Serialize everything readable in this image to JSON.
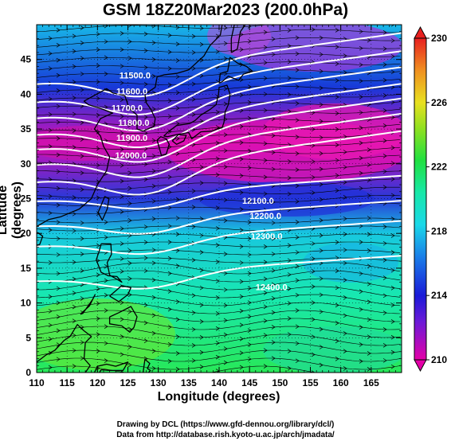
{
  "title": "GSM 18Z20Mar2023 (200.0hPa)",
  "xlabel": "Longitude (degrees)",
  "ylabel": "Latitude  (degrees)",
  "credit_line1": "Drawing by DCL (https://www.gfd-dennou.org/library/dcl/)",
  "credit_line2": "Data from http://database.rish.kyoto-u.ac.jp/arch/jmadata/",
  "colors": {
    "frame": "#000000",
    "contour": "#ffffff",
    "coast": "#000000",
    "streamline": "#000000"
  },
  "map": {
    "projection": "equirectangular",
    "lon_range": [
      110,
      170
    ],
    "lat_range": [
      0,
      50
    ],
    "x_ticks": [
      110,
      115,
      120,
      125,
      130,
      135,
      140,
      145,
      150,
      155,
      160,
      165
    ],
    "y_ticks": [
      0,
      5,
      10,
      15,
      20,
      25,
      30,
      35,
      40,
      45
    ],
    "x_tick_labels": [
      "110",
      "115",
      "120",
      "125",
      "130",
      "135",
      "140",
      "145",
      "150",
      "155",
      "160",
      "165"
    ],
    "y_tick_labels": [
      "0",
      "5",
      "10",
      "15",
      "20",
      "25",
      "30",
      "35",
      "40",
      "45"
    ]
  },
  "colorbar": {
    "min": 210,
    "max": 230,
    "tick_labels": [
      "230",
      "226",
      "222",
      "218",
      "214",
      "210"
    ],
    "tick_values": [
      230,
      226,
      222,
      218,
      214,
      210
    ]
  },
  "contour_labels": [
    {
      "text": "11500.0",
      "lon": 123.6,
      "lat": 42.6
    },
    {
      "text": "11600.0",
      "lon": 123.1,
      "lat": 40.3
    },
    {
      "text": "11700.0",
      "lon": 122.3,
      "lat": 37.9
    },
    {
      "text": "11800.0",
      "lon": 123.4,
      "lat": 35.8
    },
    {
      "text": "11900.0",
      "lon": 123.1,
      "lat": 33.6
    },
    {
      "text": "12000.0",
      "lon": 122.9,
      "lat": 31.1
    },
    {
      "text": "12100.0",
      "lon": 143.8,
      "lat": 24.6
    },
    {
      "text": "12200.0",
      "lon": 145.0,
      "lat": 22.4
    },
    {
      "text": "12300.0",
      "lon": 145.2,
      "lat": 19.5
    },
    {
      "text": "12400.0",
      "lon": 146.0,
      "lat": 12.2
    }
  ]
}
